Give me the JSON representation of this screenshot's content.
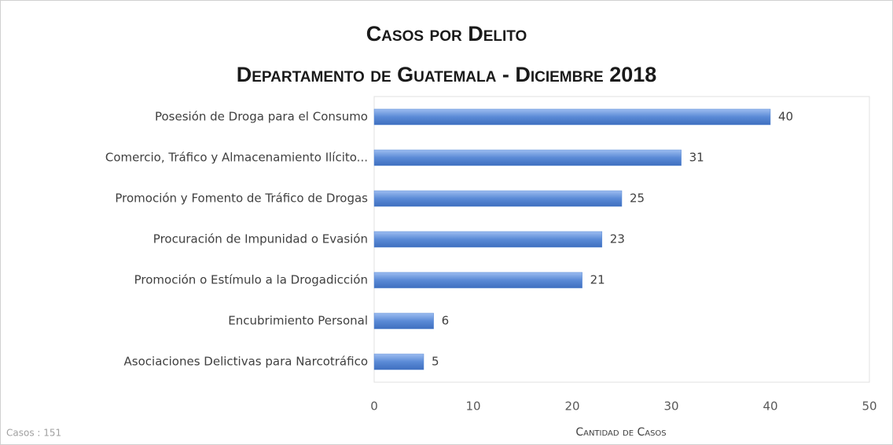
{
  "chart_data": {
    "type": "bar",
    "orientation": "horizontal",
    "title": "Casos por Delito",
    "subtitle": "Departamento de Guatemala - Diciembre 2018",
    "categories": [
      "Posesión de Droga para el Consumo",
      "Comercio, Tráfico y Almacenamiento Ilícito...",
      "Promoción y Fomento de Tráfico de Drogas",
      "Procuración de Impunidad o Evasión",
      "Promoción o Estímulo a la Drogadicción",
      "Encubrimiento Personal",
      "Asociaciones Delictivas para Narcotráfico"
    ],
    "values": [
      40,
      31,
      25,
      23,
      21,
      6,
      5
    ],
    "color": "#5a8ad6",
    "xlim": [
      0,
      50
    ],
    "xticks": [
      0,
      10,
      20,
      30,
      40,
      50
    ],
    "x_label": "Cantidad de Casos",
    "annotation": "Casos : 151",
    "grid": false
  }
}
